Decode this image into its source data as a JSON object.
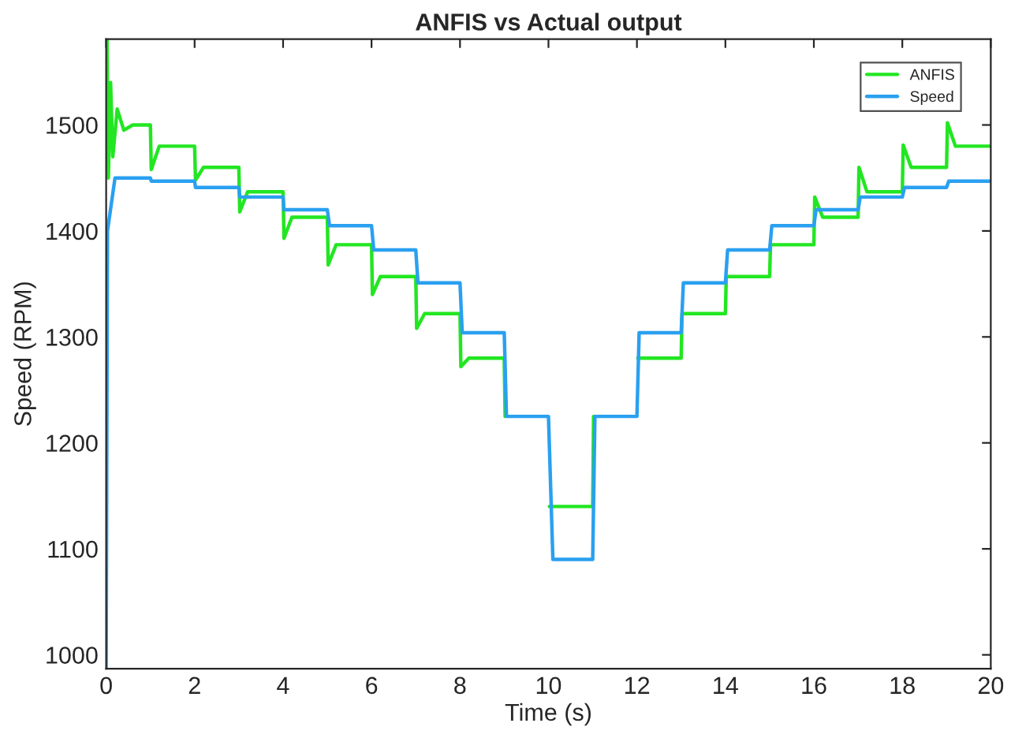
{
  "chart_data": {
    "type": "line",
    "title": "ANFIS vs Actual output",
    "xlabel": "Time (s)",
    "ylabel": "Speed (RPM)",
    "xlim": [
      0,
      20
    ],
    "xticks": [
      0,
      2,
      4,
      6,
      8,
      10,
      12,
      14,
      16,
      18,
      20
    ],
    "ylim": [
      987,
      1581
    ],
    "yticks": [
      1000,
      1100,
      1200,
      1300,
      1400,
      1500
    ],
    "grid": false,
    "legend": "top right",
    "line_style": "solid",
    "marker": "none",
    "series": [
      {
        "name": "ANFIS",
        "color": "#22e622",
        "x": [
          0.02,
          0.05,
          0.1,
          0.15,
          0.25,
          0.4,
          0.6,
          1,
          1.02,
          1.2,
          2,
          2.02,
          2.2,
          3,
          3.02,
          3.2,
          4,
          4.02,
          4.2,
          5,
          5.02,
          5.2,
          6,
          6.02,
          6.2,
          7,
          7.02,
          7.2,
          8,
          8.02,
          8.2,
          9,
          9.02,
          10,
          10.02,
          11,
          11.02,
          12,
          12.02,
          13,
          13.02,
          14,
          14.02,
          15,
          15.02,
          16,
          16.02,
          16.2,
          17,
          17.02,
          17.2,
          18,
          18.02,
          18.2,
          19,
          19.02,
          19.2,
          20
        ],
        "values": [
          1580,
          1450,
          1540,
          1470,
          1515,
          1495,
          1500,
          1500,
          1458,
          1480,
          1480,
          1448,
          1460,
          1460,
          1418,
          1437,
          1437,
          1393,
          1413,
          1413,
          1368,
          1387,
          1387,
          1340,
          1357,
          1357,
          1308,
          1322,
          1322,
          1272,
          1280,
          1280,
          1225,
          null,
          1140,
          1140,
          1225,
          null,
          1280,
          1280,
          1322,
          1322,
          1357,
          1357,
          1387,
          1387,
          1432,
          1413,
          1413,
          1460,
          1437,
          1437,
          1481,
          1460,
          1460,
          1502,
          1480,
          1480
        ]
      },
      {
        "name": "Speed",
        "color": "#2aa0f0",
        "x": [
          0,
          0.03,
          0.2,
          1,
          1.02,
          2,
          2.02,
          3,
          3.02,
          4,
          4.02,
          5,
          5.05,
          6,
          6.05,
          7,
          7.05,
          8,
          8.05,
          9,
          9.05,
          10,
          10.1,
          11,
          11.05,
          12,
          12.05,
          13,
          13.05,
          14,
          14.05,
          15,
          15.05,
          16,
          16.05,
          17,
          17.05,
          18,
          18.05,
          19,
          19.05,
          20
        ],
        "values": [
          987,
          1400,
          1450,
          1450,
          1447,
          1447,
          1441,
          1441,
          1432,
          1432,
          1420,
          1420,
          1405,
          1405,
          1382,
          1382,
          1351,
          1351,
          1304,
          1304,
          1225,
          1225,
          1090,
          1090,
          1225,
          1225,
          1304,
          1304,
          1351,
          1351,
          1382,
          1382,
          1405,
          1405,
          1420,
          1420,
          1432,
          1432,
          1441,
          1441,
          1447,
          1447
        ]
      }
    ]
  }
}
